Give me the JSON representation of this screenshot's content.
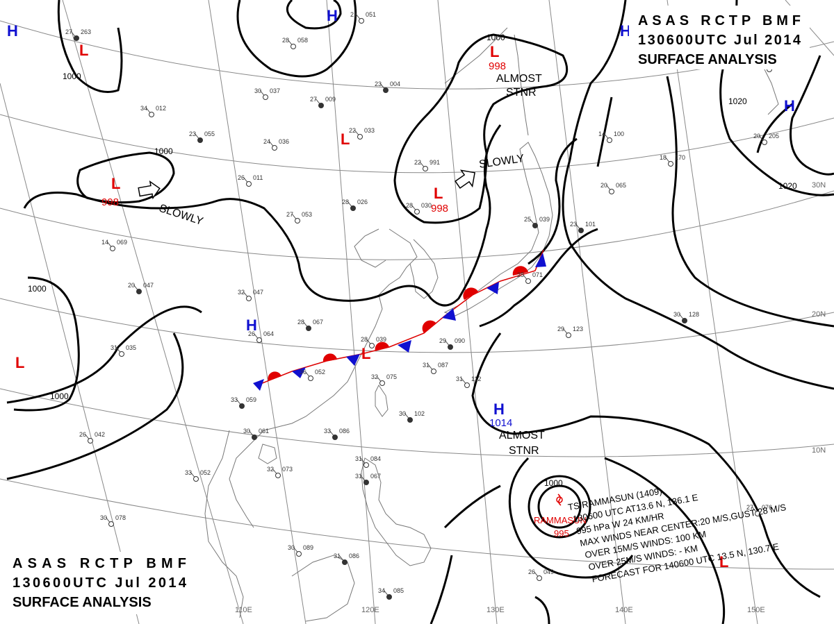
{
  "header_top_right": {
    "line1": "ASAS   RCTP   BMF",
    "line2": "130600UTC   Jul   2014",
    "line3": "SURFACE  ANALYSIS"
  },
  "header_bottom_left": {
    "line1": "ASAS   RCTP   BMF",
    "line2": "130600UTC   Jul   2014",
    "line3": "SURFACE  ANALYSIS"
  },
  "colors": {
    "low": "#e00000",
    "high": "#1010d0",
    "isobar": "#000000",
    "grid": "#888888"
  },
  "grid_labels": {
    "lon": [
      "110E",
      "120E",
      "130E",
      "140E",
      "150E"
    ],
    "lat": [
      "30N",
      "20N",
      "10N"
    ]
  },
  "lows": [
    {
      "symbol": "L",
      "pressure": "998"
    },
    {
      "symbol": "L",
      "pressure": "998"
    },
    {
      "symbol": "L",
      "pressure": "998"
    },
    {
      "symbol": "L",
      "pressure": ""
    },
    {
      "symbol": "L",
      "pressure": ""
    },
    {
      "symbol": "L",
      "pressure": ""
    },
    {
      "symbol": "L",
      "pressure": ""
    },
    {
      "symbol": "L",
      "pressure": ""
    }
  ],
  "highs": [
    {
      "symbol": "H",
      "pressure": "1014"
    },
    {
      "symbol": "H",
      "pressure": ""
    },
    {
      "symbol": "H",
      "pressure": ""
    },
    {
      "symbol": "H",
      "pressure": ""
    },
    {
      "symbol": "H",
      "pressure": ""
    },
    {
      "symbol": "H",
      "pressure": ""
    }
  ],
  "isobar_labels": [
    "1000",
    "1000",
    "1000",
    "1000",
    "1000",
    "1000",
    "1020",
    "1020"
  ],
  "movement_notes": [
    "SLOWLY",
    "SLOWLY",
    "ALMOST",
    "STNR",
    "ALMOST",
    "STNR"
  ],
  "storm": {
    "name": "RAMMASUN",
    "pressure": "995",
    "lines": [
      "TS  RAMMASUN  (1409)",
      "130600 UTC  AT13.6 N, 136.1 E",
      "995 hPa  W  24 KM/HR",
      "MAX WINDS NEAR CENTER:20 M/S,GUST 28 M/S",
      "OVER 15M/S WINDS: 100 KM",
      "OVER 25M/S WINDS: - KM",
      "FORECAST FOR 140600 UTC 13.5 N, 130.7 E"
    ]
  },
  "station_samples": [
    {
      "t": "23",
      "p": "004"
    },
    {
      "t": "24",
      "p": "036"
    },
    {
      "t": "26",
      "p": "011"
    },
    {
      "t": "28",
      "p": "026"
    },
    {
      "t": "22",
      "p": "033"
    },
    {
      "t": "22",
      "p": "991"
    },
    {
      "t": "27",
      "p": "009"
    },
    {
      "t": "30",
      "p": "037"
    },
    {
      "t": "34",
      "p": "012"
    },
    {
      "t": "23",
      "p": "055"
    },
    {
      "t": "21",
      "p": "051"
    },
    {
      "t": "28",
      "p": "058"
    },
    {
      "t": "30",
      "p": "061"
    },
    {
      "t": "27",
      "p": "053"
    },
    {
      "t": "32",
      "p": "047"
    },
    {
      "t": "20",
      "p": "047"
    },
    {
      "t": "14",
      "p": "069"
    },
    {
      "t": "31",
      "p": "035"
    },
    {
      "t": "28",
      "p": "067"
    },
    {
      "t": "28",
      "p": "039"
    },
    {
      "t": "36",
      "p": "052"
    },
    {
      "t": "33",
      "p": "059"
    },
    {
      "t": "32",
      "p": "075"
    },
    {
      "t": "31",
      "p": "087"
    },
    {
      "t": "33",
      "p": "086"
    },
    {
      "t": "32",
      "p": "073"
    },
    {
      "t": "33",
      "p": "052"
    },
    {
      "t": "30",
      "p": "102"
    },
    {
      "t": "31",
      "p": "112"
    },
    {
      "t": "29",
      "p": "123"
    },
    {
      "t": "30",
      "p": "128"
    },
    {
      "t": "14",
      "p": "100"
    },
    {
      "t": "18",
      "p": "170"
    },
    {
      "t": "23",
      "p": "101"
    },
    {
      "t": "20",
      "p": "065"
    },
    {
      "t": "25",
      "p": "071"
    },
    {
      "t": "29",
      "p": "090"
    },
    {
      "t": "27",
      "p": "076"
    },
    {
      "t": "26",
      "p": "049"
    },
    {
      "t": "31",
      "p": "086"
    },
    {
      "t": "30",
      "p": "089"
    },
    {
      "t": "31",
      "p": "084"
    },
    {
      "t": "31",
      "p": "067"
    },
    {
      "t": "26",
      "p": "042"
    },
    {
      "t": "30",
      "p": "078"
    },
    {
      "t": "34",
      "p": "085"
    },
    {
      "t": "20",
      "p": "205"
    },
    {
      "t": "15",
      "p": "139"
    },
    {
      "t": "27",
      "p": "263"
    },
    {
      "t": "28",
      "p": "030"
    },
    {
      "t": "26",
      "p": "064"
    },
    {
      "t": "25",
      "p": "039"
    }
  ]
}
